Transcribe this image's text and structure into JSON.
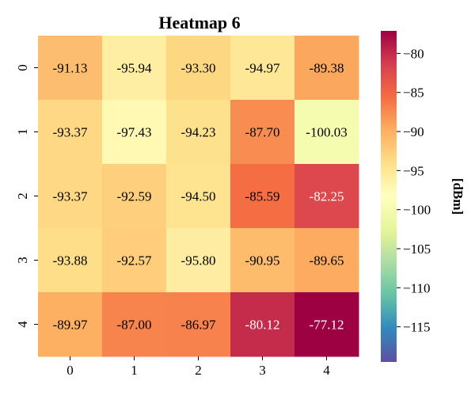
{
  "chart_data": {
    "type": "heatmap",
    "title": "Heatmap 6",
    "x_ticks": [
      "0",
      "1",
      "2",
      "3",
      "4"
    ],
    "y_ticks": [
      "0",
      "1",
      "2",
      "3",
      "4"
    ],
    "values": [
      [
        -91.13,
        -95.94,
        -93.3,
        -94.97,
        -89.38
      ],
      [
        -93.37,
        -97.43,
        -94.23,
        -87.7,
        -100.03
      ],
      [
        -93.37,
        -92.59,
        -94.5,
        -85.59,
        -82.25
      ],
      [
        -93.88,
        -92.57,
        -95.8,
        -90.95,
        -89.65
      ],
      [
        -89.97,
        -87.0,
        -86.97,
        -80.12,
        -77.12
      ]
    ],
    "value_labels": [
      [
        "-91.13",
        "-95.94",
        "-93.30",
        "-94.97",
        "-89.38"
      ],
      [
        "-93.37",
        "-97.43",
        "-94.23",
        "-87.70",
        "-100.03"
      ],
      [
        "-93.37",
        "-92.59",
        "-94.50",
        "-85.59",
        "-82.25"
      ],
      [
        "-93.88",
        "-92.57",
        "-95.80",
        "-90.95",
        "-89.65"
      ],
      [
        "-89.97",
        "-87.00",
        "-86.97",
        "-80.12",
        "-77.12"
      ]
    ],
    "colorbar": {
      "label": "[dBm]",
      "range": [
        -119.5,
        -77.12
      ],
      "ticks": [
        -80,
        -85,
        -90,
        -95,
        -100,
        -105,
        -110,
        -115
      ],
      "tick_labels": [
        "−80",
        "−85",
        "−90",
        "−95",
        "−100",
        "−105",
        "−110",
        "−115"
      ],
      "colormap": "Spectral_r"
    },
    "grid": false
  }
}
